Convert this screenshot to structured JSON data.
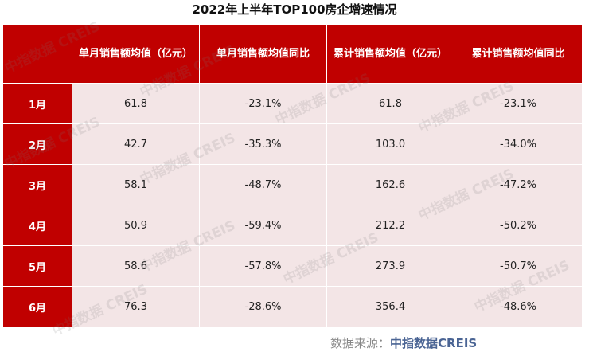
{
  "title": "2022年上半年TOP100房企增速情况",
  "table": {
    "headers": [
      "",
      "单月销售额均值（亿元）",
      "单月销售额均值同比",
      "累计销售额均值（亿元）",
      "累计销售额均值同比"
    ],
    "rows": [
      [
        "1月",
        "61.8",
        "-23.1%",
        "61.8",
        "-23.1%"
      ],
      [
        "2月",
        "42.7",
        "-35.3%",
        "103.0",
        "-34.0%"
      ],
      [
        "3月",
        "58.1",
        "-48.7%",
        "162.6",
        "-47.2%"
      ],
      [
        "4月",
        "50.9",
        "-59.4%",
        "212.2",
        "-50.2%"
      ],
      [
        "5月",
        "58.6",
        "-57.8%",
        "273.9",
        "-50.7%"
      ],
      [
        "6月",
        "76.3",
        "-28.6%",
        "356.4",
        "-48.6%"
      ]
    ]
  },
  "source": {
    "label": "数据来源：",
    "name": "中指数据CREIS"
  },
  "watermark": "中指数据 CREIS",
  "colors": {
    "header": "#c00000",
    "row": "#f3e5e6",
    "source": "#4a6494"
  }
}
